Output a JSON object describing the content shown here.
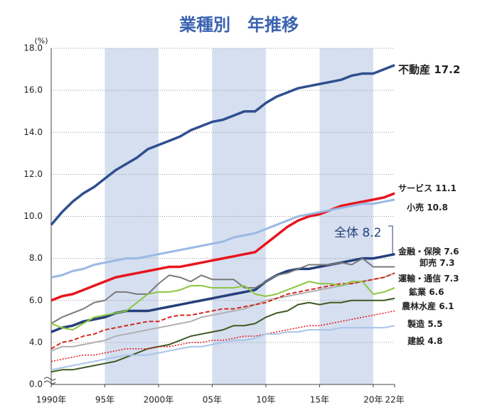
{
  "chart_data": {
    "type": "line",
    "title": "業種別　年推移",
    "y_unit": "(%)",
    "x": [
      1990,
      1991,
      1992,
      1993,
      1994,
      1995,
      1996,
      1997,
      1998,
      1999,
      2000,
      2001,
      2002,
      2003,
      2004,
      2005,
      2006,
      2007,
      2008,
      2009,
      2010,
      2011,
      2012,
      2013,
      2014,
      2015,
      2016,
      2017,
      2018,
      2019,
      2020,
      2021,
      2022
    ],
    "xlim": [
      1990,
      2022
    ],
    "xticks": [
      {
        "value": 1990,
        "label": "1990年"
      },
      {
        "value": 1995,
        "label": "95年"
      },
      {
        "value": 2000,
        "label": "2000年"
      },
      {
        "value": 2005,
        "label": "05年"
      },
      {
        "value": 2010,
        "label": "10年"
      },
      {
        "value": 2015,
        "label": "15年"
      },
      {
        "value": 2020,
        "label": "20年"
      },
      {
        "value": 2022,
        "label": "22年"
      }
    ],
    "ylim": [
      2,
      18
    ],
    "axis_break": true,
    "yticks": [
      {
        "value": 0,
        "label": "0.0"
      },
      {
        "value": 4,
        "label": "4.0"
      },
      {
        "value": 6,
        "label": "6.0"
      },
      {
        "value": 8,
        "label": "8.0"
      },
      {
        "value": 10,
        "label": "10.0"
      },
      {
        "value": 12,
        "label": "12.0"
      },
      {
        "value": 14,
        "label": "14.0"
      },
      {
        "value": 16,
        "label": "16.0"
      },
      {
        "value": 18,
        "label": "18.0"
      }
    ],
    "grid": true,
    "shaded_ranges": [
      [
        1995,
        2000
      ],
      [
        2005,
        2010
      ],
      [
        2015,
        2020
      ]
    ],
    "shade_color": "#d5dff0",
    "series": [
      {
        "name": "不動産",
        "color": "#2f4f8f",
        "width": 3.5,
        "dash": "solid",
        "values": [
          9.6,
          10.2,
          10.7,
          11.1,
          11.4,
          11.8,
          12.2,
          12.5,
          12.8,
          13.2,
          13.4,
          13.6,
          13.8,
          14.1,
          14.3,
          14.5,
          14.6,
          14.8,
          15.0,
          15.0,
          15.4,
          15.7,
          15.9,
          16.1,
          16.2,
          16.3,
          16.4,
          16.5,
          16.7,
          16.8,
          16.8,
          17.0,
          17.2
        ]
      },
      {
        "name": "サービス",
        "color": "#e8141c",
        "width": 3.5,
        "dash": "solid",
        "values": [
          6.0,
          6.2,
          6.3,
          6.5,
          6.7,
          6.9,
          7.1,
          7.2,
          7.3,
          7.4,
          7.5,
          7.6,
          7.6,
          7.7,
          7.8,
          7.9,
          8.0,
          8.1,
          8.2,
          8.3,
          8.7,
          9.1,
          9.5,
          9.8,
          10.0,
          10.1,
          10.3,
          10.5,
          10.6,
          10.7,
          10.8,
          10.9,
          11.1
        ]
      },
      {
        "name": "小売",
        "color": "#9bb8e3",
        "width": 3,
        "dash": "solid",
        "values": [
          7.1,
          7.2,
          7.4,
          7.5,
          7.7,
          7.8,
          7.9,
          8.0,
          8.0,
          8.1,
          8.2,
          8.3,
          8.4,
          8.5,
          8.6,
          8.7,
          8.8,
          9.0,
          9.1,
          9.2,
          9.4,
          9.6,
          9.8,
          10.0,
          10.1,
          10.2,
          10.3,
          10.4,
          10.5,
          10.6,
          10.6,
          10.7,
          10.8
        ]
      },
      {
        "name": "全体",
        "color": "#253f7a",
        "width": 3.5,
        "dash": "solid",
        "values": [
          4.5,
          4.7,
          4.8,
          5.0,
          5.1,
          5.2,
          5.4,
          5.5,
          5.5,
          5.5,
          5.6,
          5.7,
          5.8,
          5.9,
          6.0,
          6.1,
          6.2,
          6.3,
          6.4,
          6.5,
          6.9,
          7.2,
          7.4,
          7.5,
          7.5,
          7.6,
          7.7,
          7.8,
          7.9,
          8.0,
          8.0,
          8.1,
          8.2
        ]
      },
      {
        "name": "金融・保険",
        "color": "#7a7a7a",
        "width": 2,
        "dash": "solid",
        "values": [
          4.9,
          5.2,
          5.4,
          5.6,
          5.9,
          6.0,
          6.4,
          6.4,
          6.3,
          6.3,
          6.8,
          7.2,
          7.1,
          6.9,
          7.2,
          7.0,
          7.0,
          7.0,
          6.6,
          6.6,
          6.9,
          7.2,
          7.3,
          7.5,
          7.7,
          7.7,
          7.7,
          7.8,
          7.7,
          8.0,
          7.6,
          7.6,
          7.6
        ]
      },
      {
        "name": "卸売",
        "color": "#b0b0b0",
        "width": 2,
        "dash": "solid",
        "values": [
          3.6,
          3.8,
          3.8,
          3.9,
          4.0,
          4.1,
          4.3,
          4.4,
          4.5,
          4.6,
          4.7,
          4.8,
          4.9,
          5.0,
          5.2,
          5.3,
          5.4,
          5.5,
          5.6,
          5.8,
          6.0,
          6.1,
          6.2,
          6.3,
          6.4,
          6.5,
          6.6,
          6.7,
          6.8,
          6.9,
          7.0,
          7.1,
          7.3
        ]
      },
      {
        "name": "運輸・通信",
        "color": "#d42a20",
        "width": 2,
        "dash": "dashed",
        "values": [
          3.7,
          4.0,
          4.1,
          4.3,
          4.4,
          4.6,
          4.7,
          4.8,
          4.9,
          5.0,
          5.0,
          5.2,
          5.3,
          5.3,
          5.4,
          5.5,
          5.6,
          5.6,
          5.7,
          5.8,
          5.9,
          6.1,
          6.3,
          6.4,
          6.5,
          6.6,
          6.7,
          6.8,
          6.8,
          6.9,
          7.0,
          7.1,
          7.3
        ]
      },
      {
        "name": "鉱業",
        "color": "#8cc63e",
        "width": 2,
        "dash": "solid",
        "values": [
          4.9,
          4.7,
          4.6,
          4.9,
          5.2,
          5.3,
          5.4,
          5.5,
          5.9,
          6.3,
          6.4,
          6.4,
          6.5,
          6.7,
          6.7,
          6.6,
          6.6,
          6.6,
          6.7,
          6.3,
          6.2,
          6.3,
          6.5,
          6.7,
          6.9,
          6.8,
          6.8,
          6.7,
          6.9,
          6.9,
          6.3,
          6.4,
          6.6
        ]
      },
      {
        "name": "農林水産",
        "color": "#3e5a23",
        "width": 2,
        "dash": "solid",
        "values": [
          2.6,
          2.7,
          2.7,
          2.8,
          2.9,
          3.0,
          3.1,
          3.3,
          3.5,
          3.7,
          3.8,
          3.9,
          4.1,
          4.3,
          4.4,
          4.5,
          4.6,
          4.8,
          4.8,
          4.9,
          5.2,
          5.4,
          5.5,
          5.8,
          5.9,
          5.8,
          5.9,
          5.9,
          6.0,
          6.0,
          6.0,
          6.0,
          6.1
        ]
      },
      {
        "name": "製造",
        "color": "#e8141c",
        "width": 1.5,
        "dash": "dotted",
        "values": [
          3.1,
          3.2,
          3.3,
          3.4,
          3.4,
          3.5,
          3.6,
          3.7,
          3.7,
          3.7,
          3.8,
          3.8,
          3.9,
          4.0,
          4.0,
          4.1,
          4.1,
          4.2,
          4.3,
          4.3,
          4.4,
          4.5,
          4.6,
          4.7,
          4.8,
          4.8,
          4.9,
          5.0,
          5.1,
          5.2,
          5.3,
          5.4,
          5.5
        ]
      },
      {
        "name": "建設",
        "color": "#a8c4e8",
        "width": 2,
        "dash": "solid",
        "values": [
          2.7,
          2.8,
          2.9,
          3.0,
          3.1,
          3.2,
          3.3,
          3.4,
          3.4,
          3.4,
          3.5,
          3.6,
          3.7,
          3.8,
          3.8,
          3.9,
          4.0,
          4.1,
          4.1,
          4.2,
          4.4,
          4.4,
          4.5,
          4.5,
          4.6,
          4.6,
          4.6,
          4.7,
          4.7,
          4.7,
          4.7,
          4.7,
          4.8
        ]
      }
    ]
  }
}
